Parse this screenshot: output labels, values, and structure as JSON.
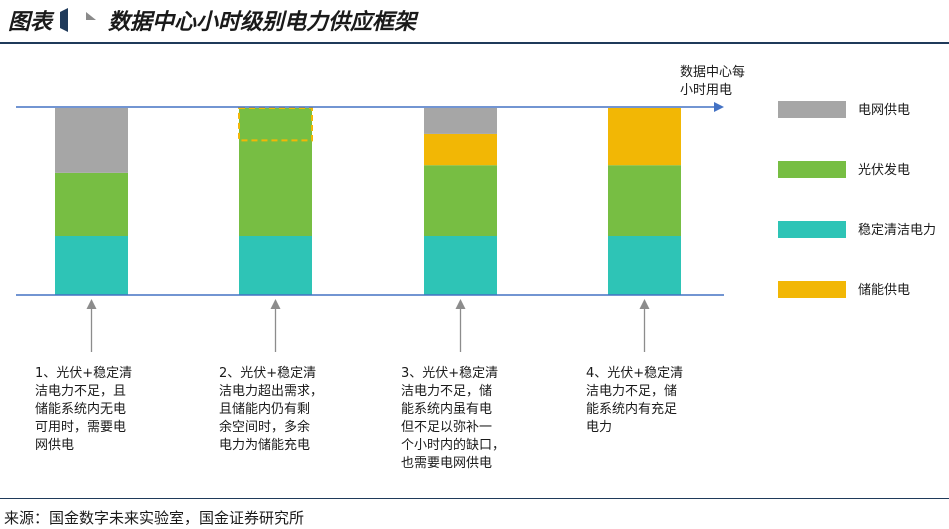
{
  "header": {
    "figure_label": "图表",
    "title": "数据中心小时级别电力供应框架"
  },
  "demand_line_label": [
    "数据中心每",
    "小时用电"
  ],
  "legend": [
    {
      "key": "grid",
      "label": "电网供电",
      "color": "#A6A6A6"
    },
    {
      "key": "solar",
      "label": "光伏发电",
      "color": "#77BE43"
    },
    {
      "key": "stable",
      "label": "稳定清洁电力",
      "color": "#2EC4B6"
    },
    {
      "key": "storage",
      "label": "储能供电",
      "color": "#F2B705"
    }
  ],
  "scenarios": [
    {
      "caption": [
        "1、光伏+稳定清",
        "洁电力不足，且",
        "储能系统内无电",
        "可用时，需要电",
        "网供电"
      ],
      "segments": [
        {
          "key": "stable",
          "value": 1.0
        },
        {
          "key": "solar",
          "value": 1.07
        },
        {
          "key": "grid",
          "value": 1.1
        }
      ]
    },
    {
      "caption": [
        "2、光伏+稳定清",
        "洁电力超出需求，",
        "且储能内仍有剩",
        "余空间时，多余",
        "电力为储能充电"
      ],
      "segments": [
        {
          "key": "stable",
          "value": 1.0
        },
        {
          "key": "solar",
          "value": 2.17
        }
      ],
      "overflow_dashed": 0.55
    },
    {
      "caption": [
        "3、光伏+稳定清",
        "洁电力不足，储",
        "能系统内虽有电",
        "但不足以弥补一",
        "个小时内的缺口，",
        "也需要电网供电"
      ],
      "segments": [
        {
          "key": "stable",
          "value": 1.0
        },
        {
          "key": "solar",
          "value": 1.2
        },
        {
          "key": "storage",
          "value": 0.53
        },
        {
          "key": "grid",
          "value": 0.44
        }
      ]
    },
    {
      "caption": [
        "4、光伏+稳定清",
        "洁电力不足，储",
        "能系统内有充足",
        "电力"
      ],
      "segments": [
        {
          "key": "stable",
          "value": 1.0
        },
        {
          "key": "solar",
          "value": 1.2
        },
        {
          "key": "storage",
          "value": 0.97
        }
      ]
    }
  ],
  "source": "来源：国金数字未来实验室，国金证券研究所"
}
